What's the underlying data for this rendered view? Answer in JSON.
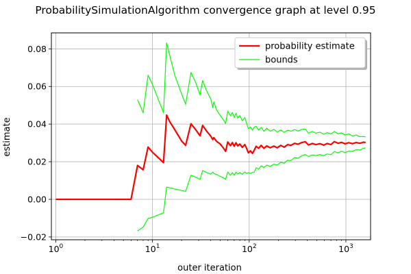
{
  "chart_data": {
    "type": "line",
    "title": "ProbabilitySimulationAlgorithm convergence graph at level 0.95",
    "xlabel": "outer iteration",
    "ylabel": "estimate",
    "xscale": "log",
    "xlim": [
      0.9,
      1800
    ],
    "ylim": [
      -0.0215,
      0.0885
    ],
    "xticks": [
      {
        "value": 1,
        "base": "10",
        "exp": "0"
      },
      {
        "value": 10,
        "base": "10",
        "exp": "1"
      },
      {
        "value": 100,
        "base": "10",
        "exp": "2"
      },
      {
        "value": 1000,
        "base": "10",
        "exp": "3"
      }
    ],
    "yticks": [
      {
        "value": -0.02,
        "label": "−0.02"
      },
      {
        "value": 0.0,
        "label": "0.00"
      },
      {
        "value": 0.02,
        "label": "0.02"
      },
      {
        "value": 0.04,
        "label": "0.04"
      },
      {
        "value": 0.06,
        "label": "0.06"
      },
      {
        "value": 0.08,
        "label": "0.08"
      }
    ],
    "grid": true,
    "legend_position": "top-right",
    "series": [
      {
        "name": "probability estimate",
        "color": "#ff0000",
        "role": "estimate",
        "points": [
          [
            1,
            0
          ],
          [
            2,
            0
          ],
          [
            4,
            0
          ],
          [
            6,
            0
          ],
          [
            7,
            0.018
          ],
          [
            8,
            0.0157
          ],
          [
            9,
            0.0278
          ],
          [
            10,
            0.025
          ],
          [
            13,
            0.0195
          ],
          [
            14,
            0.0448
          ],
          [
            15,
            0.0415
          ],
          [
            17,
            0.037
          ],
          [
            20,
            0.031
          ],
          [
            22,
            0.0287
          ],
          [
            25,
            0.0402
          ],
          [
            28,
            0.037
          ],
          [
            31,
            0.0338
          ],
          [
            33,
            0.0393
          ],
          [
            36,
            0.0365
          ],
          [
            40,
            0.0336
          ],
          [
            42,
            0.0318
          ],
          [
            43,
            0.0328
          ],
          [
            46,
            0.0308
          ],
          [
            50,
            0.0295
          ],
          [
            55,
            0.0268
          ],
          [
            57,
            0.0255
          ],
          [
            60,
            0.0305
          ],
          [
            64,
            0.0285
          ],
          [
            67,
            0.0302
          ],
          [
            70,
            0.0282
          ],
          [
            73,
            0.0301
          ],
          [
            76,
            0.0284
          ],
          [
            80,
            0.0294
          ],
          [
            85,
            0.0276
          ],
          [
            90,
            0.0291
          ],
          [
            94,
            0.0271
          ],
          [
            98,
            0.0247
          ],
          [
            103,
            0.0258
          ],
          [
            108,
            0.0244
          ],
          [
            113,
            0.0262
          ],
          [
            118,
            0.0282
          ],
          [
            125,
            0.0271
          ],
          [
            133,
            0.0287
          ],
          [
            142,
            0.0271
          ],
          [
            152,
            0.0284
          ],
          [
            165,
            0.0274
          ],
          [
            180,
            0.0283
          ],
          [
            195,
            0.0274
          ],
          [
            212,
            0.0287
          ],
          [
            230,
            0.0277
          ],
          [
            250,
            0.0291
          ],
          [
            270,
            0.0287
          ],
          [
            295,
            0.0298
          ],
          [
            320,
            0.0293
          ],
          [
            350,
            0.0302
          ],
          [
            380,
            0.0306
          ],
          [
            410,
            0.0289
          ],
          [
            450,
            0.0297
          ],
          [
            490,
            0.0291
          ],
          [
            540,
            0.0296
          ],
          [
            590,
            0.0288
          ],
          [
            640,
            0.0297
          ],
          [
            700,
            0.0291
          ],
          [
            760,
            0.0307
          ],
          [
            830,
            0.0298
          ],
          [
            900,
            0.0303
          ],
          [
            980,
            0.0295
          ],
          [
            1070,
            0.0301
          ],
          [
            1170,
            0.0296
          ],
          [
            1280,
            0.0302
          ],
          [
            1400,
            0.0298
          ],
          [
            1520,
            0.0304
          ],
          [
            1600,
            0.0302
          ]
        ]
      },
      {
        "name": "bounds",
        "color": "#00ff00",
        "role": "upper",
        "points": [
          [
            7,
            0.053
          ],
          [
            8,
            0.046
          ],
          [
            9,
            0.066
          ],
          [
            10,
            0.061
          ],
          [
            13,
            0.046
          ],
          [
            14,
            0.0832
          ],
          [
            15,
            0.077
          ],
          [
            17,
            0.066
          ],
          [
            20,
            0.056
          ],
          [
            22,
            0.0505
          ],
          [
            25,
            0.0675
          ],
          [
            28,
            0.062
          ],
          [
            31,
            0.0555
          ],
          [
            33,
            0.0632
          ],
          [
            36,
            0.058
          ],
          [
            40,
            0.0535
          ],
          [
            42,
            0.0488
          ],
          [
            43,
            0.0518
          ],
          [
            46,
            0.0475
          ],
          [
            50,
            0.0447
          ],
          [
            55,
            0.0418
          ],
          [
            57,
            0.0402
          ],
          [
            60,
            0.0468
          ],
          [
            64,
            0.0445
          ],
          [
            67,
            0.0462
          ],
          [
            70,
            0.0435
          ],
          [
            73,
            0.0458
          ],
          [
            76,
            0.0432
          ],
          [
            80,
            0.0445
          ],
          [
            85,
            0.0418
          ],
          [
            90,
            0.0435
          ],
          [
            94,
            0.0405
          ],
          [
            98,
            0.0375
          ],
          [
            103,
            0.0385
          ],
          [
            108,
            0.0368
          ],
          [
            113,
            0.0385
          ],
          [
            118,
            0.0388
          ],
          [
            125,
            0.0368
          ],
          [
            133,
            0.0383
          ],
          [
            142,
            0.0362
          ],
          [
            152,
            0.0378
          ],
          [
            165,
            0.0362
          ],
          [
            180,
            0.0372
          ],
          [
            195,
            0.0358
          ],
          [
            212,
            0.0369
          ],
          [
            230,
            0.0356
          ],
          [
            250,
            0.0368
          ],
          [
            270,
            0.0362
          ],
          [
            295,
            0.0371
          ],
          [
            320,
            0.0363
          ],
          [
            350,
            0.0372
          ],
          [
            380,
            0.0374
          ],
          [
            410,
            0.0352
          ],
          [
            450,
            0.0361
          ],
          [
            490,
            0.0352
          ],
          [
            540,
            0.0357
          ],
          [
            590,
            0.0346
          ],
          [
            640,
            0.0355
          ],
          [
            700,
            0.0347
          ],
          [
            760,
            0.0361
          ],
          [
            830,
            0.0348
          ],
          [
            900,
            0.0353
          ],
          [
            980,
            0.0342
          ],
          [
            1070,
            0.0348
          ],
          [
            1170,
            0.0337
          ],
          [
            1280,
            0.0342
          ],
          [
            1400,
            0.0333
          ],
          [
            1520,
            0.0334
          ],
          [
            1600,
            0.0332
          ]
        ]
      },
      {
        "name": "bounds",
        "color": "#00ff00",
        "role": "lower",
        "points": [
          [
            7,
            -0.0168
          ],
          [
            8,
            -0.0148
          ],
          [
            9,
            -0.0102
          ],
          [
            10,
            -0.0095
          ],
          [
            13,
            -0.0072
          ],
          [
            14,
            0.0065
          ],
          [
            15,
            0.0062
          ],
          [
            17,
            0.0055
          ],
          [
            20,
            0.0047
          ],
          [
            22,
            0.0042
          ],
          [
            25,
            0.0128
          ],
          [
            28,
            0.0118
          ],
          [
            31,
            0.0105
          ],
          [
            33,
            0.0153
          ],
          [
            36,
            0.0143
          ],
          [
            40,
            0.0134
          ],
          [
            42,
            0.0145
          ],
          [
            43,
            0.0138
          ],
          [
            46,
            0.0132
          ],
          [
            50,
            0.0122
          ],
          [
            55,
            0.0112
          ],
          [
            57,
            0.0106
          ],
          [
            60,
            0.0145
          ],
          [
            64,
            0.0128
          ],
          [
            67,
            0.0142
          ],
          [
            70,
            0.0128
          ],
          [
            73,
            0.0145
          ],
          [
            76,
            0.0134
          ],
          [
            80,
            0.0142
          ],
          [
            85,
            0.0133
          ],
          [
            90,
            0.0146
          ],
          [
            94,
            0.0138
          ],
          [
            98,
            0.0142
          ],
          [
            103,
            0.0137
          ],
          [
            108,
            0.0143
          ],
          [
            113,
            0.0145
          ],
          [
            118,
            0.0168
          ],
          [
            125,
            0.0161
          ],
          [
            133,
            0.0178
          ],
          [
            142,
            0.0169
          ],
          [
            152,
            0.0182
          ],
          [
            165,
            0.0175
          ],
          [
            180,
            0.0187
          ],
          [
            195,
            0.0182
          ],
          [
            212,
            0.0197
          ],
          [
            230,
            0.0192
          ],
          [
            250,
            0.0208
          ],
          [
            270,
            0.0206
          ],
          [
            295,
            0.0222
          ],
          [
            320,
            0.0218
          ],
          [
            350,
            0.0232
          ],
          [
            380,
            0.0238
          ],
          [
            410,
            0.0228
          ],
          [
            450,
            0.0236
          ],
          [
            490,
            0.0232
          ],
          [
            540,
            0.0238
          ],
          [
            590,
            0.0232
          ],
          [
            640,
            0.0241
          ],
          [
            700,
            0.0237
          ],
          [
            760,
            0.0254
          ],
          [
            830,
            0.0247
          ],
          [
            900,
            0.0255
          ],
          [
            980,
            0.0249
          ],
          [
            1070,
            0.0256
          ],
          [
            1170,
            0.0255
          ],
          [
            1280,
            0.0264
          ],
          [
            1400,
            0.0262
          ],
          [
            1520,
            0.0272
          ],
          [
            1600,
            0.0273
          ]
        ]
      }
    ],
    "legend": [
      {
        "label": "probability estimate",
        "color": "#ff0000",
        "width": 2.2
      },
      {
        "label": "bounds",
        "color": "#00ff00",
        "width": 1.2
      }
    ]
  }
}
